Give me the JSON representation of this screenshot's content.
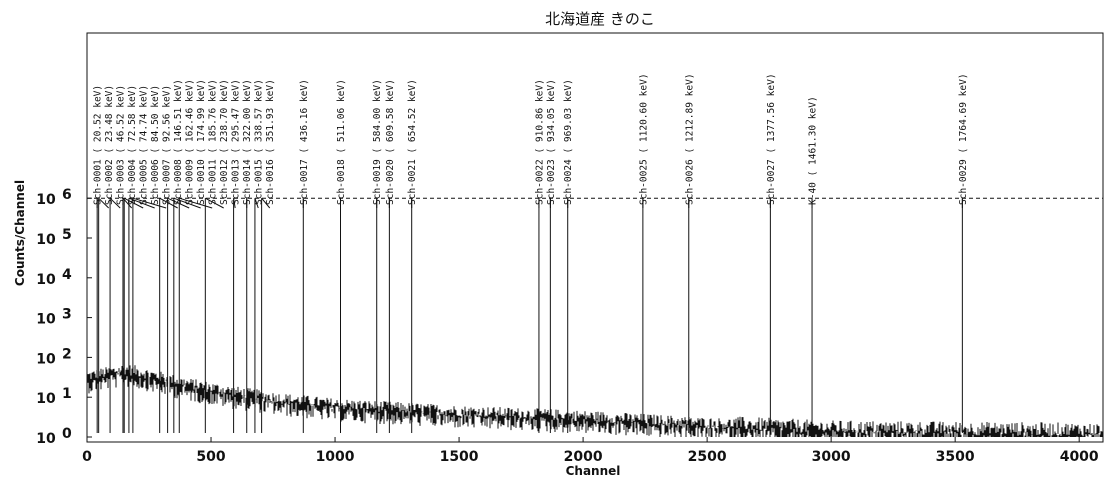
{
  "chart_data": {
    "type": "line",
    "title": "北海道産 きのこ",
    "xlabel": "Channel",
    "ylabel": "Counts/Channel",
    "xlim": [
      0,
      4096
    ],
    "ylog": true,
    "ylim_decades": [
      0,
      6
    ],
    "x_ticks": [
      "0",
      "500",
      "1000",
      "1500",
      "2000",
      "2500",
      "3000",
      "3500",
      "4000"
    ],
    "x_tick_values": [
      0,
      500,
      1000,
      1500,
      2000,
      2500,
      3000,
      3500,
      4000
    ],
    "y_ticks": [
      {
        "base": "10",
        "exp": "0",
        "decade": 0
      },
      {
        "base": "10",
        "exp": "1",
        "decade": 1
      },
      {
        "base": "10",
        "exp": "2",
        "decade": 2
      },
      {
        "base": "10",
        "exp": "3",
        "decade": 3
      },
      {
        "base": "10",
        "exp": "4",
        "decade": 4
      },
      {
        "base": "10",
        "exp": "5",
        "decade": 5
      },
      {
        "base": "10",
        "exp": "6",
        "decade": 6
      }
    ],
    "reference_line_decade": 6,
    "spectrum_envelope": [
      {
        "channel": 0,
        "counts": 30
      },
      {
        "channel": 60,
        "counts": 35
      },
      {
        "channel": 150,
        "counts": 45
      },
      {
        "channel": 200,
        "counts": 40
      },
      {
        "channel": 400,
        "counts": 20
      },
      {
        "channel": 600,
        "counts": 12
      },
      {
        "channel": 800,
        "counts": 8
      },
      {
        "channel": 1000,
        "counts": 6
      },
      {
        "channel": 1500,
        "counts": 4
      },
      {
        "channel": 2000,
        "counts": 3
      },
      {
        "channel": 2500,
        "counts": 2
      },
      {
        "channel": 3000,
        "counts": 1.5
      },
      {
        "channel": 4096,
        "counts": 1.3
      }
    ],
    "peaks": [
      {
        "label": "Sch-0001 (  20.52 keV)",
        "channel": 41
      },
      {
        "label": "Sch-0002 (  23.48 keV)",
        "channel": 47
      },
      {
        "label": "Sch-0003 (  46.52 keV)",
        "channel": 93
      },
      {
        "label": "Sch-0004 (  72.58 keV)",
        "channel": 145
      },
      {
        "label": "Sch-0005 (  74.74 keV)",
        "channel": 150
      },
      {
        "label": "Sch-0006 (  84.50 keV)",
        "channel": 169
      },
      {
        "label": "Sch-0007 (  92.56 keV)",
        "channel": 185
      },
      {
        "label": "Sch-0008 ( 146.51 keV)",
        "channel": 293
      },
      {
        "label": "Sch-0009 ( 162.46 keV)",
        "channel": 325
      },
      {
        "label": "Sch-0010 ( 174.99 keV)",
        "channel": 350
      },
      {
        "label": "Sch-0011 ( 185.76 keV)",
        "channel": 372
      },
      {
        "label": "Sch-0012 ( 238.70 keV)",
        "channel": 477
      },
      {
        "label": "Sch-0013 ( 295.47 keV)",
        "channel": 591
      },
      {
        "label": "Sch-0014 ( 322.00 keV)",
        "channel": 644
      },
      {
        "label": "Sch-0015 ( 338.57 keV)",
        "channel": 677
      },
      {
        "label": "Sch-0016 ( 351.93 keV)",
        "channel": 704
      },
      {
        "label": "Sch-0017 ( 436.16 keV)",
        "channel": 872
      },
      {
        "label": "Sch-0018 ( 511.06 keV)",
        "channel": 1022
      },
      {
        "label": "Sch-0019 ( 584.00 keV)",
        "channel": 1168
      },
      {
        "label": "Sch-0020 ( 609.58 keV)",
        "channel": 1219
      },
      {
        "label": "Sch-0021 ( 654.52 keV)",
        "channel": 1309
      },
      {
        "label": "Sch-0022 ( 910.86 keV)",
        "channel": 1822
      },
      {
        "label": "Sch-0023 ( 934.05 keV)",
        "channel": 1868
      },
      {
        "label": "Sch-0024 ( 969.03 keV)",
        "channel": 1938
      },
      {
        "label": "Sch-0025 ( 1120.60 keV)",
        "channel": 2241
      },
      {
        "label": "Sch-0026 ( 1212.89 keV)",
        "channel": 2426
      },
      {
        "label": "Sch-0027 ( 1377.56 keV)",
        "channel": 2755
      },
      {
        "label": "K-40 ( 1461.30 keV)",
        "channel": 2923
      },
      {
        "label": "Sch-0029 ( 1764.69 keV)",
        "channel": 3529
      }
    ]
  }
}
